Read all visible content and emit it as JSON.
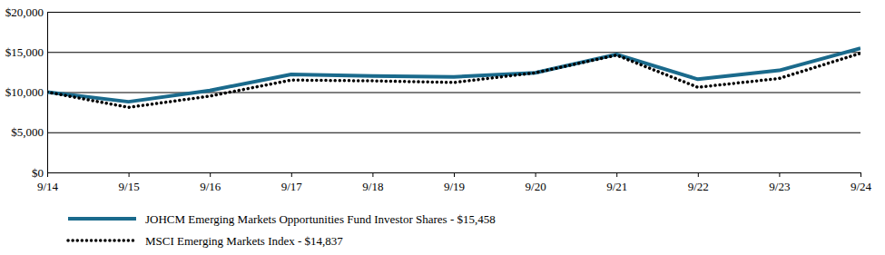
{
  "chart_data": {
    "type": "line",
    "categories": [
      "9/14",
      "9/15",
      "9/16",
      "9/17",
      "9/18",
      "9/19",
      "9/20",
      "9/21",
      "9/22",
      "9/23",
      "9/24"
    ],
    "series": [
      {
        "name": "JOHCM Emerging Markets Opportunities Fund Investor Shares - $15,458",
        "color": "#1a6a8c",
        "line_style": "solid",
        "values": [
          10000,
          8800,
          10200,
          12200,
          12000,
          11900,
          12400,
          14700,
          11600,
          12700,
          15458
        ]
      },
      {
        "name": "MSCI Emerging Markets Index - $14,837",
        "color": "#000000",
        "line_style": "dotted",
        "values": [
          10000,
          8100,
          9500,
          11500,
          11400,
          11200,
          12400,
          14600,
          10600,
          11700,
          14837
        ]
      }
    ],
    "ylim": [
      0,
      20000
    ],
    "yticks": [
      {
        "value": 0,
        "label": "$0"
      },
      {
        "value": 5000,
        "label": "$5,000"
      },
      {
        "value": 10000,
        "label": "$10,000"
      },
      {
        "value": 15000,
        "label": "$15,000"
      },
      {
        "value": 20000,
        "label": "$20,000"
      }
    ],
    "grid": true,
    "legend": "bottom"
  }
}
